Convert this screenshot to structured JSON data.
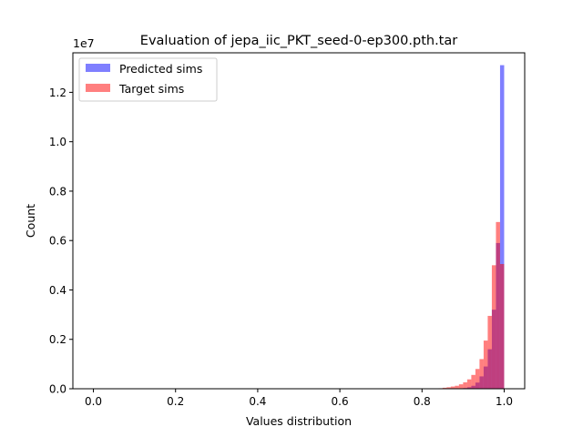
{
  "chart_data": {
    "type": "bar",
    "title": "Evaluation of jepa_iic_PKT_seed-0-ep300.pth.tar",
    "xlabel": "Values distribution",
    "ylabel": "Count",
    "y_multiplier_label": "1e7",
    "xlim": [
      -0.05,
      1.05
    ],
    "ylim": [
      0,
      13600000.0
    ],
    "x_ticks": [
      0.0,
      0.2,
      0.4,
      0.6,
      0.8,
      1.0
    ],
    "x_tick_labels": [
      "0.0",
      "0.2",
      "0.4",
      "0.6",
      "0.8",
      "1.0"
    ],
    "y_ticks": [
      0,
      2000000,
      4000000,
      6000000,
      8000000,
      10000000,
      12000000
    ],
    "y_tick_labels": [
      "0.0",
      "0.2",
      "0.4",
      "0.6",
      "0.8",
      "1.0",
      "1.2"
    ],
    "bin_width": 0.01,
    "bin_left_edges": [
      0.84,
      0.85,
      0.86,
      0.87,
      0.88,
      0.89,
      0.9,
      0.91,
      0.92,
      0.93,
      0.94,
      0.95,
      0.96,
      0.97,
      0.98,
      0.99
    ],
    "legend_position": "upper-left",
    "grid": false,
    "series": [
      {
        "name": "Predicted sims",
        "color": "#0000ff",
        "alpha": 0.5,
        "values": [
          0,
          0,
          0,
          0,
          0,
          10000,
          30000,
          60000,
          120000,
          250000,
          500000,
          900000,
          1600000,
          3200000,
          5900000,
          13100000
        ]
      },
      {
        "name": "Target sims",
        "color": "#ff0000",
        "alpha": 0.5,
        "values": [
          20000,
          40000,
          60000,
          90000,
          120000,
          180000,
          260000,
          380000,
          560000,
          800000,
          1200000,
          1950000,
          2950000,
          5000000,
          6750000,
          5050000
        ]
      }
    ]
  }
}
